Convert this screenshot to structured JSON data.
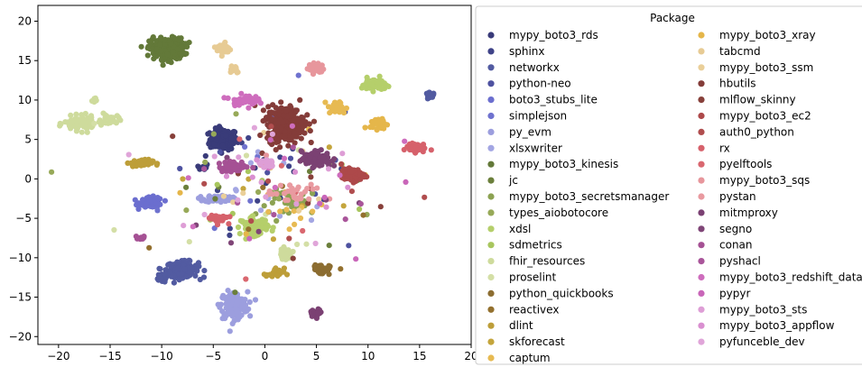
{
  "chart_data": {
    "type": "scatter",
    "xlim": [
      -22,
      20
    ],
    "ylim": [
      -21,
      22
    ],
    "xticks": [
      -20,
      -15,
      -10,
      -5,
      0,
      5,
      10,
      15,
      20
    ],
    "yticks": [
      -20,
      -15,
      -10,
      -5,
      0,
      5,
      10,
      15,
      20
    ],
    "grid": false,
    "legend": {
      "title": "Package",
      "placement": "right, outside plot",
      "columns": 2
    },
    "series": [
      {
        "name": "mypy_boto3_rds",
        "color": "#393b79",
        "clusters": [
          [
            -4,
            5,
            1.2,
            1.2,
            160
          ],
          [
            -6,
            1.5,
            0.5,
            0.4,
            10
          ],
          [
            0,
            1,
            3,
            3,
            8
          ]
        ]
      },
      {
        "name": "sphinx",
        "color": "#3f4388",
        "clusters": [
          [
            0,
            3,
            6,
            8,
            12
          ]
        ]
      },
      {
        "name": "networkx",
        "color": "#525ba1",
        "clusters": [
          [
            -8,
            -11.5,
            1.4,
            0.9,
            170
          ],
          [
            -10,
            -12.5,
            0.6,
            0.6,
            20
          ],
          [
            16,
            10.5,
            0.4,
            0.4,
            25
          ]
        ]
      },
      {
        "name": "python-neo",
        "color": "#4e52a0",
        "clusters": [
          [
            0,
            0,
            10,
            10,
            10
          ]
        ]
      },
      {
        "name": "boto3_stubs_lite",
        "color": "#6b6ecf",
        "clusters": [
          [
            -11,
            -3,
            1.0,
            0.6,
            70
          ]
        ]
      },
      {
        "name": "simplejson",
        "color": "#6f72cf",
        "clusters": [
          [
            0,
            0,
            10,
            10,
            8
          ]
        ]
      },
      {
        "name": "py_evm",
        "color": "#9c9ede",
        "clusters": [
          [
            -3,
            -16,
            1.2,
            1.5,
            190
          ],
          [
            -4.5,
            -2.5,
            1.2,
            0.4,
            60
          ]
        ]
      },
      {
        "name": "xlsxwriter",
        "color": "#a3a6e3",
        "clusters": [
          [
            0,
            -1,
            8,
            8,
            10
          ]
        ]
      },
      {
        "name": "mypy_boto3_kinesis",
        "color": "#637939",
        "clusters": [
          [
            -9.5,
            16.5,
            1.5,
            1.2,
            270
          ]
        ]
      },
      {
        "name": "jc",
        "color": "#6b7f3b",
        "clusters": [
          [
            0,
            0,
            10,
            10,
            8
          ]
        ]
      },
      {
        "name": "mypy_boto3_secretsmanager",
        "color": "#8ca252",
        "clusters": [
          [
            3,
            -3,
            2.5,
            1.5,
            40
          ]
        ]
      },
      {
        "name": "types_aiobotocore",
        "color": "#97a958",
        "clusters": [
          [
            0,
            0,
            10,
            10,
            8
          ]
        ]
      },
      {
        "name": "xdsl",
        "color": "#b5cf6b",
        "clusters": [
          [
            -1,
            -6,
            1.2,
            1.0,
            100
          ],
          [
            10.5,
            12,
            1.0,
            0.7,
            60
          ]
        ]
      },
      {
        "name": "sdmetrics",
        "color": "#a8c65e",
        "clusters": [
          [
            0,
            0,
            10,
            10,
            8
          ]
        ]
      },
      {
        "name": "fhir_resources",
        "color": "#cedb9c",
        "clusters": [
          [
            -18,
            7,
            1.3,
            0.8,
            100
          ],
          [
            -15,
            7.5,
            0.8,
            0.6,
            30
          ],
          [
            2,
            -9.5,
            0.6,
            0.6,
            30
          ],
          [
            -16.5,
            10,
            0.4,
            0.3,
            8
          ]
        ]
      },
      {
        "name": "proselint",
        "color": "#d4dfa6",
        "clusters": [
          [
            0,
            0,
            10,
            10,
            8
          ]
        ]
      },
      {
        "name": "python_quickbooks",
        "color": "#8c6d31",
        "clusters": [
          [
            5.5,
            -11.5,
            0.7,
            0.6,
            50
          ]
        ]
      },
      {
        "name": "reactivex",
        "color": "#93702e",
        "clusters": [
          [
            0,
            -2,
            8,
            8,
            8
          ]
        ]
      },
      {
        "name": "dlint",
        "color": "#bd9e39",
        "clusters": [
          [
            -12,
            2,
            1.0,
            0.4,
            60
          ],
          [
            1,
            -12,
            0.8,
            0.6,
            20
          ]
        ]
      },
      {
        "name": "skforecast",
        "color": "#c4a53c",
        "clusters": [
          [
            0,
            -2,
            8,
            8,
            10
          ]
        ]
      },
      {
        "name": "captum",
        "color": "#e7ba52",
        "clusters": [
          [
            7,
            9,
            0.8,
            0.8,
            40
          ],
          [
            3,
            -4,
            2,
            2,
            12
          ]
        ]
      },
      {
        "name": "mypy_boto3_xray",
        "color": "#e5b64a",
        "clusters": [
          [
            11,
            7,
            0.7,
            0.6,
            40
          ],
          [
            0,
            0,
            10,
            10,
            6
          ]
        ]
      },
      {
        "name": "tabcmd",
        "color": "#e7cb94",
        "clusters": [
          [
            -4,
            16.5,
            0.6,
            0.7,
            40
          ],
          [
            -3,
            14,
            0.5,
            0.5,
            20
          ]
        ]
      },
      {
        "name": "mypy_boto3_ssm",
        "color": "#eacf99",
        "clusters": [
          [
            0,
            0,
            10,
            10,
            8
          ]
        ]
      },
      {
        "name": "hbutils",
        "color": "#843c39",
        "clusters": [
          [
            2,
            7,
            1.6,
            2.0,
            330
          ]
        ]
      },
      {
        "name": "mlflow_skinny",
        "color": "#87403a",
        "clusters": [
          [
            0,
            0,
            10,
            10,
            8
          ]
        ]
      },
      {
        "name": "mypy_boto3_ec2",
        "color": "#ad494a",
        "clusters": [
          [
            8.5,
            0.5,
            1.0,
            0.7,
            70
          ]
        ]
      },
      {
        "name": "auth0_python",
        "color": "#b04d4e",
        "clusters": [
          [
            0,
            0,
            10,
            10,
            8
          ]
        ]
      },
      {
        "name": "rx",
        "color": "#d6616b",
        "clusters": [
          [
            -4.5,
            -5,
            0.8,
            0.5,
            40
          ],
          [
            14.5,
            4,
            0.9,
            0.6,
            40
          ]
        ]
      },
      {
        "name": "pyelftools",
        "color": "#d9676f",
        "clusters": [
          [
            0,
            0,
            10,
            10,
            6
          ]
        ]
      },
      {
        "name": "mypy_boto3_sqs",
        "color": "#e7969c",
        "clusters": [
          [
            5,
            14,
            0.7,
            0.6,
            40
          ],
          [
            0,
            2,
            0.7,
            0.5,
            20
          ]
        ]
      },
      {
        "name": "pystan",
        "color": "#e99aa0",
        "clusters": [
          [
            3,
            -2,
            2.5,
            1.2,
            30
          ]
        ]
      },
      {
        "name": "mitmproxy",
        "color": "#7b4173",
        "clusters": [
          [
            5,
            2.5,
            1.3,
            0.9,
            90
          ],
          [
            5,
            -17,
            0.5,
            0.4,
            30
          ]
        ]
      },
      {
        "name": "segno",
        "color": "#7f4577",
        "clusters": [
          [
            0,
            0,
            10,
            10,
            6
          ]
        ]
      },
      {
        "name": "conan",
        "color": "#a55194",
        "clusters": [
          [
            -3,
            1.5,
            1.3,
            0.6,
            60
          ],
          [
            -12,
            -7.5,
            0.6,
            0.3,
            10
          ]
        ]
      },
      {
        "name": "pyshacl",
        "color": "#a9559a",
        "clusters": [
          [
            0,
            0,
            10,
            10,
            6
          ]
        ]
      },
      {
        "name": "mypy_boto3_redshift_data",
        "color": "#ce6dbd",
        "clusters": [
          [
            -2,
            10,
            1.2,
            0.6,
            40
          ],
          [
            0,
            0,
            10,
            10,
            8
          ]
        ]
      },
      {
        "name": "pypyr",
        "color": "#c966b9",
        "clusters": [
          [
            0,
            0,
            10,
            10,
            6
          ]
        ]
      },
      {
        "name": "mypy_boto3_sts",
        "color": "#de9ed6",
        "clusters": [
          [
            0,
            2,
            0.8,
            0.5,
            20
          ],
          [
            0,
            0,
            10,
            10,
            8
          ]
        ]
      },
      {
        "name": "mypy_boto3_appflow",
        "color": "#d98fd0",
        "clusters": [
          [
            0,
            0,
            10,
            10,
            6
          ]
        ]
      },
      {
        "name": "pyfunceble_dev",
        "color": "#e0a5d9",
        "clusters": [
          [
            0,
            0,
            10,
            10,
            6
          ]
        ]
      }
    ]
  }
}
